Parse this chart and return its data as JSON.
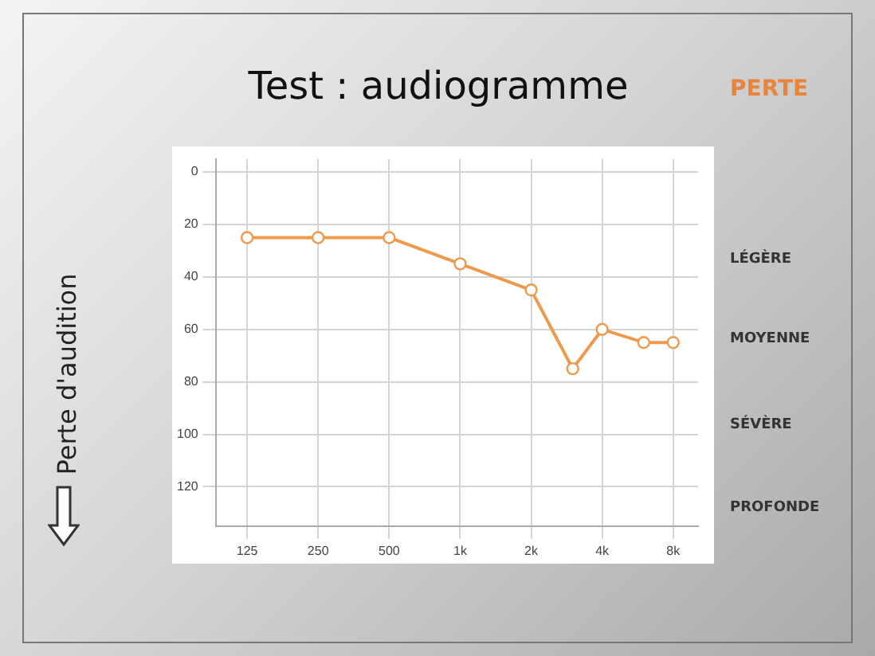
{
  "chart_data": {
    "type": "line",
    "title": "Test : audiogramme",
    "ylabel": "Perte d'audition",
    "x": [
      125,
      250,
      500,
      1000,
      2000,
      3000,
      4000,
      6000,
      8000
    ],
    "series": [
      {
        "color": "#ee9a4d",
        "values": [
          25,
          25,
          25,
          35,
          45,
          75,
          60,
          65,
          65
        ]
      }
    ],
    "log": "x",
    "xlim": [
      92,
      10200
    ],
    "xticks": [
      125,
      250,
      500,
      {
        "value": 1000,
        "label": "1k"
      },
      {
        "value": 2000,
        "label": "2k"
      },
      {
        "value": 4000,
        "label": "4k"
      },
      {
        "value": 8000,
        "label": "8k"
      }
    ],
    "ylim": [
      135,
      -5
    ],
    "yticks": [
      0,
      20,
      40,
      60,
      80,
      100,
      120
    ],
    "grid": true,
    "legend": false,
    "marker": "circle",
    "line_style": "solid",
    "annotations": [
      "PERTE",
      "LÉGÈRE",
      "MOYENNE",
      "SÉVÈRE",
      "PROFONDE"
    ]
  }
}
